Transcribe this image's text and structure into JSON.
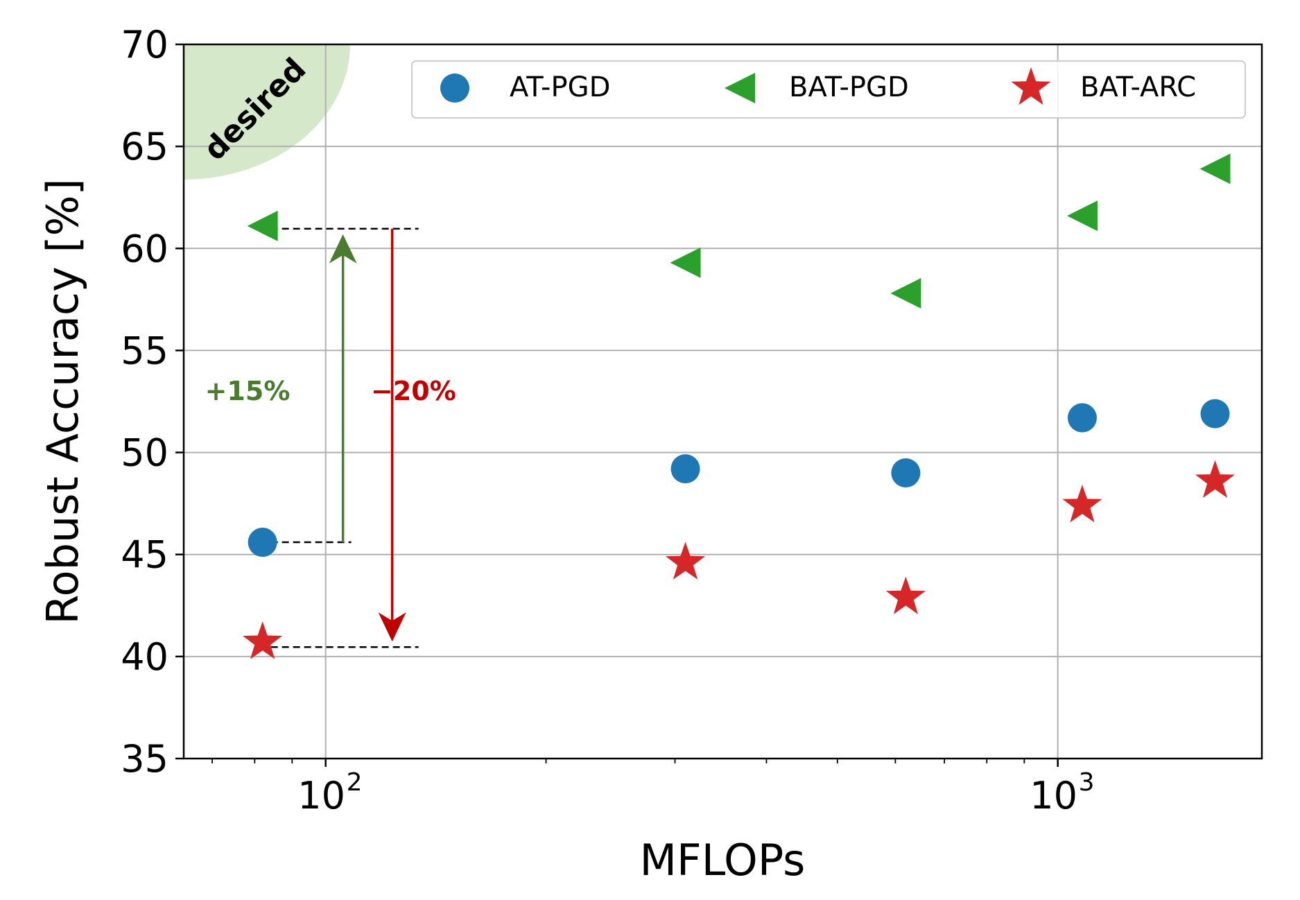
{
  "chart_data": {
    "type": "scatter",
    "xlabel": "MFLOPs",
    "ylabel": "Robust Accuracy [%]",
    "xscale": "log",
    "xlim": [
      64,
      1900
    ],
    "ylim": [
      35,
      70
    ],
    "grid": true,
    "legend_position": "top-right",
    "yticks": [
      {
        "value": 35,
        "label": "35"
      },
      {
        "value": 40,
        "label": "40"
      },
      {
        "value": 45,
        "label": "45"
      },
      {
        "value": 50,
        "label": "50"
      },
      {
        "value": 55,
        "label": "55"
      },
      {
        "value": 60,
        "label": "60"
      },
      {
        "value": 65,
        "label": "65"
      },
      {
        "value": 70,
        "label": "70"
      }
    ],
    "xticks": [
      {
        "value": 100,
        "base": "10",
        "exp": "2"
      },
      {
        "value": 1000,
        "base": "10",
        "exp": "3"
      }
    ],
    "series": [
      {
        "name": "AT-PGD",
        "marker": "circle",
        "color": "#1f77b4",
        "x": [
          82,
          310,
          620,
          1080,
          1640
        ],
        "y": [
          45.6,
          49.2,
          49.0,
          51.7,
          51.9
        ]
      },
      {
        "name": "BAT-PGD",
        "marker": "triangle-left",
        "color": "#2ca02c",
        "x": [
          82,
          310,
          620,
          1080,
          1640
        ],
        "y": [
          61.1,
          59.3,
          57.8,
          61.6,
          63.9
        ]
      },
      {
        "name": "BAT-ARC",
        "marker": "star",
        "color": "#d62728",
        "x": [
          82,
          310,
          620,
          1080,
          1640
        ],
        "y": [
          40.7,
          44.6,
          42.9,
          47.4,
          48.6
        ]
      }
    ],
    "annotations": {
      "desired_label": "desired",
      "desired_color": "#d5e8c9",
      "gain_label": "+15%",
      "gain_color": "#4a7c2f",
      "drop_label": "−20%",
      "drop_color": "#c00000"
    }
  }
}
